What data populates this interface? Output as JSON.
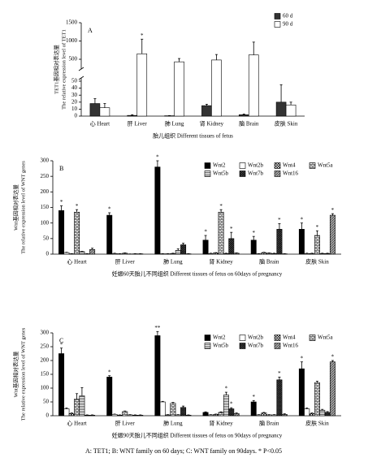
{
  "chart_data": [
    {
      "type": "bar",
      "panel": "A",
      "axis_break": true,
      "ylabel_cn": "TET1基因相对表达量",
      "ylabel_en": "The relative expression level of TET1",
      "xlabel": "胎儿组织 Different tissues of fetus",
      "categories": [
        "心 Heart",
        "肝 Liver",
        "肺 Lung",
        "肾 Kidney",
        "脑 Brain",
        "皮肤 Skin"
      ],
      "ylim": [
        0,
        1500
      ],
      "yticks": [
        0,
        10,
        20,
        30,
        40,
        50,
        500,
        1000,
        1500
      ],
      "legend": "top-right",
      "series": [
        {
          "name": "60 d",
          "color": "#333333",
          "pattern": "solid",
          "values": [
            18,
            1,
            0.5,
            15,
            2,
            20
          ],
          "errors": [
            7,
            1,
            0.3,
            2,
            1,
            25
          ]
        },
        {
          "name": "90 d",
          "color": "#ffffff",
          "pattern": "solid",
          "values": [
            12,
            650,
            430,
            480,
            620,
            16
          ],
          "errors": [
            6,
            400,
            90,
            150,
            350,
            4
          ],
          "significance": [
            null,
            "*",
            null,
            null,
            null,
            null
          ]
        }
      ]
    },
    {
      "type": "bar",
      "panel": "B",
      "axis_break": false,
      "ylabel_cn": "Wnt基因相对表达量",
      "ylabel_en": "The relative expression level of WNT genes",
      "xlabel": "妊娠60天胎儿不同组织 Different tissues of fetus on 60days of pregnancy",
      "categories": [
        "心 Heart",
        "肝 Liver",
        "肺 Lung",
        "肾 Kidney",
        "脑 Brain",
        "皮肤 Skin"
      ],
      "ylim": [
        0,
        300
      ],
      "yticks": [
        0,
        50,
        100,
        150,
        200,
        250,
        300
      ],
      "legend": "top-right",
      "series": [
        {
          "name": "Wnt2",
          "color": "#000000",
          "pattern": "solid",
          "values": [
            140,
            125,
            280,
            45,
            45,
            80
          ],
          "errors": [
            15,
            8,
            20,
            15,
            12,
            20
          ],
          "significance": [
            "*",
            "*",
            "*",
            "*",
            "*",
            "*"
          ]
        },
        {
          "name": "Wnt2b",
          "color": "#ffffff",
          "pattern": "solid",
          "values": [
            5,
            2,
            1,
            2,
            1,
            2
          ],
          "errors": [
            1,
            1,
            0.5,
            1,
            0.5,
            1
          ]
        },
        {
          "name": "Wnt4",
          "color": "#000000",
          "pattern": "checker",
          "values": [
            1,
            1,
            1,
            4,
            5,
            2
          ],
          "errors": [
            0.5,
            0.5,
            0.5,
            1,
            1,
            1
          ]
        },
        {
          "name": "Wnt5a",
          "color": "#000000",
          "pattern": "brick",
          "values": [
            135,
            3,
            2,
            135,
            3,
            60
          ],
          "errors": [
            8,
            1,
            1,
            8,
            1,
            15
          ],
          "significance": [
            "*",
            null,
            null,
            "*",
            null,
            "*"
          ]
        },
        {
          "name": "Wnt5b",
          "color": "#000000",
          "pattern": "hlines",
          "values": [
            8,
            0.5,
            12,
            2,
            2,
            2
          ],
          "errors": [
            1,
            0.3,
            5,
            1,
            1,
            1
          ]
        },
        {
          "name": "Wnt7b",
          "color": "#000000",
          "pattern": "crosshatch",
          "values": [
            1,
            1,
            30,
            50,
            80,
            2
          ],
          "errors": [
            0.5,
            0.5,
            5,
            20,
            18,
            1
          ],
          "significance": [
            null,
            null,
            null,
            "*",
            "*",
            null
          ]
        },
        {
          "name": "Wnt16",
          "color": "#000000",
          "pattern": "diag",
          "values": [
            15,
            1,
            1,
            3,
            1,
            125
          ],
          "errors": [
            4,
            0.5,
            0.5,
            1,
            0.5,
            5
          ],
          "significance": [
            null,
            null,
            null,
            null,
            null,
            "*"
          ]
        }
      ]
    },
    {
      "type": "bar",
      "panel": "C",
      "axis_break": false,
      "ylabel_cn": "Wnt基因相对表达量",
      "ylabel_en": "The relative expression level of WNT genes",
      "xlabel": "妊娠90天胎儿不同组织 Different tissues of fetus on 90days of pregnancy",
      "categories": [
        "心 Heart",
        "肝 Liver",
        "肺 Lung",
        "肾 Kidney",
        "脑 Brain",
        "皮肤 Skin"
      ],
      "ylim": [
        0,
        300
      ],
      "yticks": [
        0,
        50,
        100,
        150,
        200,
        250,
        300
      ],
      "legend": "top-right",
      "series": [
        {
          "name": "Wnt2",
          "color": "#000000",
          "pattern": "solid",
          "values": [
            225,
            140,
            290,
            12,
            50,
            170
          ],
          "errors": [
            20,
            5,
            15,
            2,
            5,
            25
          ],
          "significance": [
            "*",
            "*",
            "**",
            null,
            "*",
            "*"
          ]
        },
        {
          "name": "Wnt2b",
          "color": "#ffffff",
          "pattern": "solid",
          "values": [
            25,
            5,
            50,
            3,
            3,
            25
          ],
          "errors": [
            3,
            1,
            2,
            1,
            1,
            3
          ]
        },
        {
          "name": "Wnt4",
          "color": "#000000",
          "pattern": "checker",
          "values": [
            8,
            2,
            3,
            5,
            10,
            8
          ],
          "errors": [
            2,
            1,
            1,
            1,
            2,
            2
          ]
        },
        {
          "name": "Wnt5a",
          "color": "#000000",
          "pattern": "brick",
          "values": [
            60,
            15,
            45,
            12,
            3,
            120
          ],
          "errors": [
            20,
            2,
            3,
            2,
            1,
            5
          ]
        },
        {
          "name": "Wnt5b",
          "color": "#000000",
          "pattern": "hlines",
          "values": [
            72,
            3,
            3,
            75,
            3,
            20
          ],
          "errors": [
            30,
            1,
            1,
            10,
            1,
            3
          ],
          "significance": [
            null,
            null,
            null,
            "*",
            null,
            null
          ]
        },
        {
          "name": "Wnt7b",
          "color": "#000000",
          "pattern": "crosshatch",
          "values": [
            2,
            2,
            30,
            25,
            130,
            12
          ],
          "errors": [
            1,
            1,
            5,
            4,
            10,
            3
          ],
          "significance": [
            null,
            null,
            null,
            "*",
            "*",
            null
          ]
        },
        {
          "name": "Wnt16",
          "color": "#000000",
          "pattern": "diag",
          "values": [
            2,
            2,
            2,
            8,
            5,
            195
          ],
          "errors": [
            1,
            1,
            1,
            2,
            2,
            5
          ],
          "significance": [
            null,
            null,
            null,
            null,
            null,
            "*"
          ]
        }
      ]
    }
  ],
  "caption": "A: TET1; B: WNT family on 60 days; C: WNT family on 90days. * P<0.05"
}
